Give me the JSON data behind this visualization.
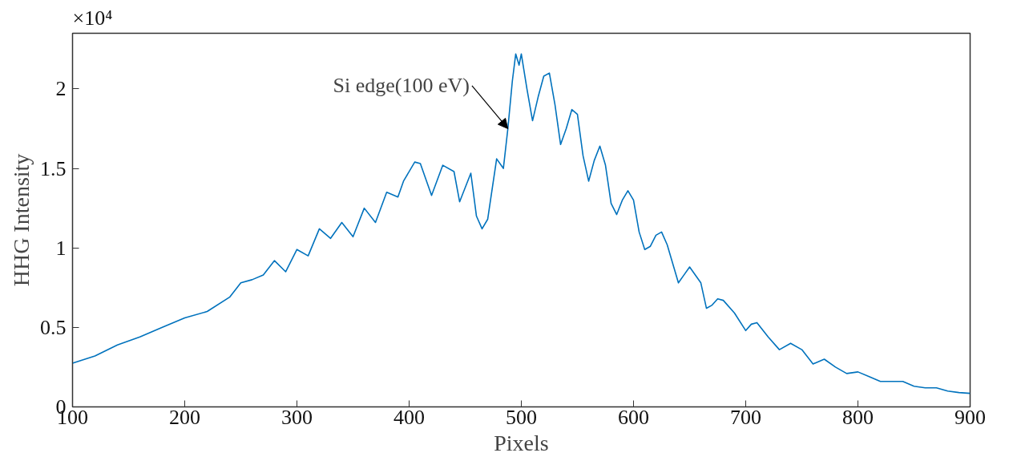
{
  "chart_data": {
    "type": "line",
    "xlabel": "Pixels",
    "ylabel": "HHG Intensity",
    "annotations": [
      {
        "text": "Si edge(100 eV)",
        "x": 488,
        "y": 1.75
      },
      "×10⁴"
    ],
    "xlim": [
      100,
      900
    ],
    "ylim": [
      0,
      2.35
    ],
    "xticks": [
      100,
      200,
      300,
      400,
      500,
      600,
      700,
      800,
      900
    ],
    "yticks": [
      0,
      0.5,
      1,
      1.5,
      2
    ],
    "grid": false,
    "series": [
      {
        "color": "#0072bd",
        "x": [
          100,
          120,
          140,
          160,
          180,
          200,
          220,
          240,
          250,
          260,
          270,
          280,
          290,
          300,
          310,
          320,
          330,
          340,
          350,
          360,
          370,
          380,
          390,
          395,
          405,
          410,
          420,
          430,
          440,
          445,
          455,
          460,
          465,
          470,
          478,
          484,
          488,
          492,
          495,
          498,
          500,
          505,
          510,
          515,
          520,
          525,
          530,
          535,
          540,
          545,
          550,
          555,
          560,
          565,
          570,
          575,
          580,
          585,
          590,
          595,
          600,
          605,
          610,
          615,
          620,
          625,
          630,
          640,
          645,
          650,
          660,
          665,
          670,
          675,
          680,
          690,
          700,
          705,
          710,
          720,
          730,
          740,
          750,
          760,
          770,
          780,
          790,
          800,
          810,
          820,
          840,
          850,
          860,
          870,
          880,
          890,
          900
        ],
        "values": [
          0.275,
          0.32,
          0.39,
          0.44,
          0.5,
          0.56,
          0.6,
          0.69,
          0.78,
          0.8,
          0.83,
          0.92,
          0.85,
          0.99,
          0.95,
          1.12,
          1.06,
          1.16,
          1.07,
          1.25,
          1.16,
          1.35,
          1.32,
          1.42,
          1.54,
          1.53,
          1.33,
          1.52,
          1.48,
          1.29,
          1.47,
          1.2,
          1.12,
          1.18,
          1.56,
          1.5,
          1.75,
          2.05,
          2.22,
          2.15,
          2.22,
          2.0,
          1.8,
          1.95,
          2.08,
          2.1,
          1.9,
          1.65,
          1.75,
          1.87,
          1.84,
          1.58,
          1.42,
          1.55,
          1.64,
          1.52,
          1.28,
          1.21,
          1.3,
          1.36,
          1.3,
          1.1,
          0.99,
          1.01,
          1.08,
          1.1,
          1.02,
          0.78,
          0.83,
          0.88,
          0.78,
          0.62,
          0.64,
          0.68,
          0.67,
          0.59,
          0.48,
          0.52,
          0.53,
          0.44,
          0.36,
          0.4,
          0.36,
          0.27,
          0.3,
          0.25,
          0.21,
          0.22,
          0.19,
          0.16,
          0.16,
          0.13,
          0.12,
          0.12,
          0.1,
          0.09,
          0.085
        ]
      }
    ]
  }
}
